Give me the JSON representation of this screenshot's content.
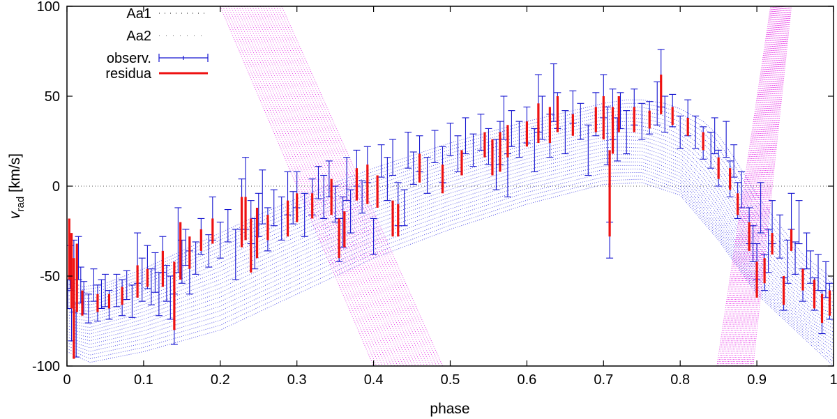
{
  "chart_data": {
    "type": "line",
    "title": "",
    "xlabel": "phase",
    "ylabel_main": "v",
    "ylabel_sub": "rad",
    "ylabel_unit": " [km/s]",
    "xlim": [
      0,
      1
    ],
    "ylim": [
      -100,
      100
    ],
    "xticks": [
      0,
      0.1,
      0.2,
      0.3,
      0.4,
      0.5,
      0.6,
      0.7,
      0.8,
      0.9,
      1
    ],
    "xtick_labels": [
      "0",
      "0.1",
      "0.2",
      "0.3",
      "0.4",
      "0.5",
      "0.6",
      "0.7",
      "0.8",
      "0.9",
      "1"
    ],
    "yticks": [
      -100,
      -50,
      0,
      50,
      100
    ],
    "ytick_labels": [
      "-100",
      "-50",
      "0",
      "50",
      "100"
    ],
    "zero_line": true,
    "legend_position": "top-left",
    "legend": [
      {
        "label": "Aa1",
        "style": "dots",
        "color": "#000000"
      },
      {
        "label": "Aa2",
        "style": "dots",
        "color": "#555555"
      },
      {
        "label": "observ.",
        "style": "errorbar",
        "color": "#1515d0"
      },
      {
        "label": "residua",
        "style": "line",
        "color": "#ee1111"
      }
    ],
    "series": [
      {
        "name": "Aa1",
        "color": "#1a1ae0",
        "description": "model radial-velocity curve family for primary (many epochs)",
        "curve_upper": {
          "x": [
            0,
            0.02,
            0.05,
            0.1,
            0.15,
            0.2,
            0.25,
            0.3,
            0.35,
            0.4,
            0.45,
            0.5,
            0.55,
            0.6,
            0.65,
            0.7,
            0.73,
            0.75,
            0.78,
            0.8,
            0.83,
            0.85,
            0.87,
            0.9,
            0.93,
            0.96,
            1.0
          ],
          "y": [
            -52,
            -56,
            -54,
            -46,
            -36,
            -26,
            -16,
            -7,
            2,
            10,
            17,
            24,
            30,
            36,
            41,
            46,
            48,
            48,
            46,
            43,
            36,
            28,
            16,
            -5,
            -22,
            -38,
            -52
          ]
        },
        "curve_lower": {
          "x": [
            0,
            0.03,
            0.1,
            0.2,
            0.3,
            0.4,
            0.5,
            0.6,
            0.7,
            0.75,
            0.8,
            0.85,
            0.9,
            0.95,
            1.0
          ],
          "y": [
            -92,
            -98,
            -92,
            -80,
            -60,
            -40,
            -24,
            -10,
            1,
            2,
            -5,
            -30,
            -60,
            -80,
            -100
          ]
        },
        "band_count": 24
      },
      {
        "name": "Aa2",
        "color": "#e000e0",
        "description": "model radial-velocity curve family for secondary (steep bands)",
        "band_left": {
          "x_at_top": [
            0.2,
            0.28
          ],
          "x_at_bottom": [
            0.4,
            0.49
          ],
          "ylim": [
            100,
            -100
          ]
        },
        "band_right": {
          "x_at_bottom": [
            0.848,
            0.895
          ],
          "x_at_top": [
            0.918,
            0.945
          ],
          "ylim": [
            -100,
            100
          ]
        },
        "band_count": 24
      },
      {
        "name": "observ.",
        "color": "#1515d0",
        "points": [
          [
            0.001,
            -60,
            8
          ],
          [
            0.004,
            -45,
            12
          ],
          [
            0.006,
            -72,
            14
          ],
          [
            0.009,
            -50,
            20
          ],
          [
            0.012,
            -80,
            15
          ],
          [
            0.015,
            -40,
            12
          ],
          [
            0.018,
            -55,
            10
          ],
          [
            0.022,
            -62,
            9
          ],
          [
            0.028,
            -68,
            8
          ],
          [
            0.035,
            -55,
            9
          ],
          [
            0.04,
            -65,
            10
          ],
          [
            0.045,
            -60,
            8
          ],
          [
            0.05,
            -58,
            9
          ],
          [
            0.055,
            -66,
            8
          ],
          [
            0.065,
            -58,
            9
          ],
          [
            0.072,
            -62,
            10
          ],
          [
            0.078,
            -55,
            8
          ],
          [
            0.085,
            -64,
            9
          ],
          [
            0.092,
            -40,
            14
          ],
          [
            0.098,
            -52,
            12
          ],
          [
            0.105,
            -45,
            12
          ],
          [
            0.11,
            -56,
            10
          ],
          [
            0.115,
            -48,
            11
          ],
          [
            0.12,
            -60,
            12
          ],
          [
            0.125,
            -38,
            10
          ],
          [
            0.13,
            -54,
            10
          ],
          [
            0.135,
            -62,
            12
          ],
          [
            0.14,
            -74,
            14
          ],
          [
            0.145,
            -30,
            18
          ],
          [
            0.15,
            -42,
            12
          ],
          [
            0.155,
            -34,
            10
          ],
          [
            0.16,
            -48,
            12
          ],
          [
            0.168,
            -40,
            9
          ],
          [
            0.175,
            -28,
            10
          ],
          [
            0.185,
            -36,
            9
          ],
          [
            0.19,
            -18,
            12
          ],
          [
            0.2,
            -30,
            10
          ],
          [
            0.21,
            -22,
            9
          ],
          [
            0.22,
            -38,
            14
          ],
          [
            0.228,
            -10,
            14
          ],
          [
            0.233,
            -4,
            20
          ],
          [
            0.24,
            -20,
            12
          ],
          [
            0.245,
            -32,
            14
          ],
          [
            0.25,
            -16,
            12
          ],
          [
            0.255,
            -6,
            15
          ],
          [
            0.262,
            -24,
            12
          ],
          [
            0.27,
            -12,
            10
          ],
          [
            0.28,
            -18,
            12
          ],
          [
            0.288,
            -4,
            12
          ],
          [
            0.295,
            -12,
            9
          ],
          [
            0.3,
            -2,
            10
          ],
          [
            0.31,
            -16,
            12
          ],
          [
            0.32,
            -6,
            10
          ],
          [
            0.328,
            2,
            9
          ],
          [
            0.335,
            -6,
            12
          ],
          [
            0.342,
            4,
            10
          ],
          [
            0.35,
            -10,
            10
          ],
          [
            0.355,
            -30,
            12
          ],
          [
            0.36,
            -20,
            14
          ],
          [
            0.365,
            4,
            12
          ],
          [
            0.37,
            -14,
            12
          ],
          [
            0.378,
            10,
            10
          ],
          [
            0.385,
            -6,
            9
          ],
          [
            0.392,
            12,
            10
          ],
          [
            0.4,
            -28,
            10
          ],
          [
            0.41,
            14,
            9
          ],
          [
            0.418,
            4,
            12
          ],
          [
            0.425,
            16,
            10
          ],
          [
            0.432,
            -10,
            12
          ],
          [
            0.44,
            -12,
            10
          ],
          [
            0.445,
            20,
            10
          ],
          [
            0.452,
            10,
            9
          ],
          [
            0.46,
            18,
            10
          ],
          [
            0.47,
            6,
            10
          ],
          [
            0.48,
            22,
            9
          ],
          [
            0.49,
            12,
            10
          ],
          [
            0.5,
            26,
            9
          ],
          [
            0.51,
            18,
            10
          ],
          [
            0.52,
            28,
            10
          ],
          [
            0.53,
            20,
            9
          ],
          [
            0.54,
            30,
            10
          ],
          [
            0.55,
            22,
            10
          ],
          [
            0.56,
            12,
            14
          ],
          [
            0.565,
            24,
            12
          ],
          [
            0.57,
            38,
            12
          ],
          [
            0.575,
            6,
            12
          ],
          [
            0.58,
            32,
            10
          ],
          [
            0.59,
            26,
            10
          ],
          [
            0.6,
            34,
            10
          ],
          [
            0.61,
            20,
            12
          ],
          [
            0.615,
            46,
            16
          ],
          [
            0.62,
            38,
            12
          ],
          [
            0.63,
            28,
            12
          ],
          [
            0.635,
            52,
            16
          ],
          [
            0.64,
            42,
            10
          ],
          [
            0.65,
            30,
            12
          ],
          [
            0.66,
            44,
            9
          ],
          [
            0.67,
            36,
            10
          ],
          [
            0.68,
            20,
            14
          ],
          [
            0.69,
            40,
            12
          ],
          [
            0.7,
            50,
            12
          ],
          [
            0.705,
            28,
            16
          ],
          [
            0.708,
            -30,
            10
          ],
          [
            0.712,
            40,
            14
          ],
          [
            0.718,
            26,
            12
          ],
          [
            0.722,
            42,
            10
          ],
          [
            0.73,
            30,
            12
          ],
          [
            0.74,
            44,
            10
          ],
          [
            0.75,
            36,
            10
          ],
          [
            0.76,
            38,
            9
          ],
          [
            0.77,
            46,
            12
          ],
          [
            0.775,
            60,
            16
          ],
          [
            0.78,
            40,
            10
          ],
          [
            0.79,
            42,
            9
          ],
          [
            0.8,
            30,
            9
          ],
          [
            0.81,
            38,
            10
          ],
          [
            0.82,
            30,
            9
          ],
          [
            0.83,
            24,
            9
          ],
          [
            0.84,
            20,
            10
          ],
          [
            0.845,
            28,
            10
          ],
          [
            0.85,
            10,
            10
          ],
          [
            0.86,
            26,
            10
          ],
          [
            0.865,
            4,
            10
          ],
          [
            0.87,
            14,
            9
          ],
          [
            0.875,
            -8,
            10
          ],
          [
            0.88,
            -2,
            10
          ],
          [
            0.89,
            -22,
            10
          ],
          [
            0.895,
            -32,
            10
          ],
          [
            0.9,
            -42,
            10
          ],
          [
            0.905,
            -12,
            14
          ],
          [
            0.91,
            -48,
            10
          ],
          [
            0.915,
            -36,
            12
          ],
          [
            0.92,
            -20,
            12
          ],
          [
            0.93,
            -28,
            12
          ],
          [
            0.935,
            -60,
            9
          ],
          [
            0.94,
            -42,
            12
          ],
          [
            0.945,
            -14,
            10
          ],
          [
            0.95,
            -40,
            9
          ],
          [
            0.955,
            -20,
            12
          ],
          [
            0.96,
            -55,
            9
          ],
          [
            0.965,
            -36,
            10
          ],
          [
            0.97,
            -45,
            9
          ],
          [
            0.975,
            -60,
            9
          ],
          [
            0.98,
            -48,
            10
          ],
          [
            0.985,
            -70,
            12
          ],
          [
            0.99,
            -52,
            10
          ],
          [
            0.995,
            -64,
            10
          ]
        ]
      },
      {
        "name": "residua",
        "color": "#ee1111",
        "segments": [
          [
            0.003,
            -18,
            -52
          ],
          [
            0.006,
            -26,
            -68
          ],
          [
            0.009,
            -40,
            -96
          ],
          [
            0.013,
            -32,
            -70
          ],
          [
            0.02,
            -58,
            -72
          ],
          [
            0.04,
            -60,
            -70
          ],
          [
            0.055,
            -60,
            -68
          ],
          [
            0.072,
            -56,
            -66
          ],
          [
            0.092,
            -44,
            -62
          ],
          [
            0.105,
            -46,
            -56
          ],
          [
            0.125,
            -36,
            -56
          ],
          [
            0.14,
            -42,
            -80
          ],
          [
            0.148,
            -20,
            -52
          ],
          [
            0.16,
            -28,
            -46
          ],
          [
            0.175,
            -24,
            -36
          ],
          [
            0.19,
            -18,
            -32
          ],
          [
            0.228,
            -6,
            -34
          ],
          [
            0.233,
            -6,
            -30
          ],
          [
            0.24,
            -18,
            -48
          ],
          [
            0.248,
            -12,
            -40
          ],
          [
            0.262,
            -16,
            -30
          ],
          [
            0.288,
            -8,
            -28
          ],
          [
            0.3,
            -4,
            -20
          ],
          [
            0.32,
            -4,
            -18
          ],
          [
            0.345,
            4,
            -16
          ],
          [
            0.355,
            -18,
            -40
          ],
          [
            0.362,
            -14,
            -34
          ],
          [
            0.378,
            10,
            -8
          ],
          [
            0.392,
            12,
            -10
          ],
          [
            0.405,
            6,
            -12
          ],
          [
            0.425,
            -8,
            -28
          ],
          [
            0.432,
            -10,
            -28
          ],
          [
            0.46,
            18,
            2
          ],
          [
            0.49,
            12,
            -4
          ],
          [
            0.515,
            20,
            6
          ],
          [
            0.545,
            30,
            16
          ],
          [
            0.555,
            26,
            6
          ],
          [
            0.565,
            30,
            8
          ],
          [
            0.575,
            34,
            16
          ],
          [
            0.6,
            36,
            22
          ],
          [
            0.615,
            46,
            24
          ],
          [
            0.63,
            44,
            24
          ],
          [
            0.64,
            50,
            30
          ],
          [
            0.66,
            40,
            28
          ],
          [
            0.69,
            44,
            30
          ],
          [
            0.7,
            50,
            26
          ],
          [
            0.708,
            20,
            -28
          ],
          [
            0.712,
            44,
            18
          ],
          [
            0.72,
            50,
            30
          ],
          [
            0.74,
            44,
            30
          ],
          [
            0.76,
            42,
            32
          ],
          [
            0.775,
            62,
            40
          ],
          [
            0.79,
            44,
            34
          ],
          [
            0.81,
            38,
            28
          ],
          [
            0.83,
            30,
            20
          ],
          [
            0.85,
            16,
            4
          ],
          [
            0.865,
            10,
            -2
          ],
          [
            0.875,
            -4,
            -16
          ],
          [
            0.89,
            -20,
            -36
          ],
          [
            0.9,
            -42,
            -62
          ],
          [
            0.91,
            -40,
            -54
          ],
          [
            0.92,
            -26,
            -38
          ],
          [
            0.935,
            -50,
            -66
          ],
          [
            0.945,
            -24,
            -36
          ],
          [
            0.96,
            -46,
            -58
          ],
          [
            0.975,
            -52,
            -68
          ],
          [
            0.985,
            -60,
            -76
          ],
          [
            0.995,
            -58,
            -72
          ]
        ]
      }
    ]
  }
}
